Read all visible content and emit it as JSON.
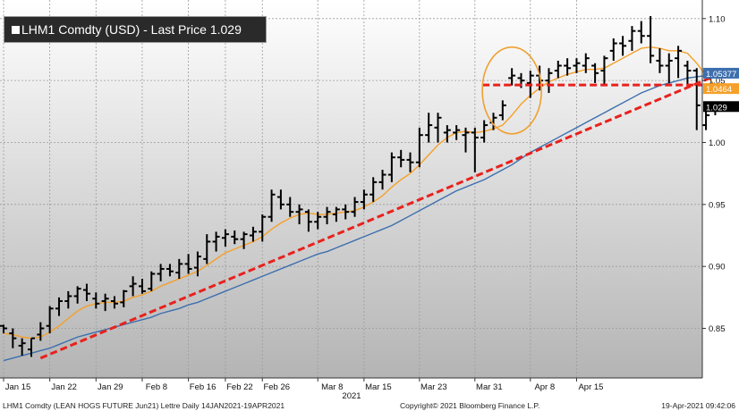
{
  "legend": {
    "title": "LHM1 Comdty (USD) - Last Price 1.029"
  },
  "footer": {
    "description": "LHM1 Comdty (LEAN HOGS FUTURE Jun21) Lettre Daily 14JAN2021-19APR2021",
    "copyright": "Copyright© 2021 Bloomberg Finance L.P.",
    "timestamp": "19-Apr-2021 09:42:06"
  },
  "colors": {
    "price_bars": "#000000",
    "ma_short": "#f5a02a",
    "ma_long": "#3d6fae",
    "trendline": "#e8211d",
    "highlight_circle": "#f0a030",
    "label_blue": "#3d6fae",
    "label_orange": "#f5a02a",
    "label_black": "#000000"
  },
  "chart_data": {
    "type": "line",
    "title": "LHM1 Comdty (USD) - Last Price 1.029",
    "xlabel": "2021",
    "ylabel": "",
    "ylim": [
      0.81,
      1.115
    ],
    "yticks": [
      "0.85",
      "0.90",
      "0.95",
      "1.00",
      "1.05",
      "1.10"
    ],
    "xtick_labels": [
      "Jan 15",
      "Jan 22",
      "Jan 29",
      "Feb 8",
      "Feb 16",
      "Feb 22",
      "Feb 26",
      "Mar 8",
      "Mar 15",
      "Mar 23",
      "Mar 31",
      "Apr 8",
      "Apr 15"
    ],
    "xtick_bar_index": [
      0,
      5,
      10,
      15,
      20,
      24,
      28,
      34,
      39,
      45,
      51,
      57,
      62
    ],
    "axis_year_label": "2021",
    "ohlc_bars": [
      {
        "o": 0.852,
        "h": 0.853,
        "l": 0.846,
        "c": 0.85
      },
      {
        "o": 0.846,
        "h": 0.85,
        "l": 0.834,
        "c": 0.842
      },
      {
        "o": 0.836,
        "h": 0.842,
        "l": 0.828,
        "c": 0.838
      },
      {
        "o": 0.833,
        "h": 0.842,
        "l": 0.827,
        "c": 0.842
      },
      {
        "o": 0.845,
        "h": 0.855,
        "l": 0.84,
        "c": 0.85
      },
      {
        "o": 0.852,
        "h": 0.868,
        "l": 0.846,
        "c": 0.866
      },
      {
        "o": 0.866,
        "h": 0.875,
        "l": 0.86,
        "c": 0.872
      },
      {
        "o": 0.872,
        "h": 0.88,
        "l": 0.866,
        "c": 0.876
      },
      {
        "o": 0.876,
        "h": 0.884,
        "l": 0.87,
        "c": 0.882
      },
      {
        "o": 0.881,
        "h": 0.886,
        "l": 0.872,
        "c": 0.878
      },
      {
        "o": 0.874,
        "h": 0.879,
        "l": 0.866,
        "c": 0.87
      },
      {
        "o": 0.872,
        "h": 0.878,
        "l": 0.864,
        "c": 0.874
      },
      {
        "o": 0.872,
        "h": 0.876,
        "l": 0.866,
        "c": 0.87
      },
      {
        "o": 0.871,
        "h": 0.881,
        "l": 0.867,
        "c": 0.88
      },
      {
        "o": 0.884,
        "h": 0.892,
        "l": 0.876,
        "c": 0.886
      },
      {
        "o": 0.884,
        "h": 0.89,
        "l": 0.878,
        "c": 0.88
      },
      {
        "o": 0.882,
        "h": 0.896,
        "l": 0.88,
        "c": 0.894
      },
      {
        "o": 0.894,
        "h": 0.902,
        "l": 0.888,
        "c": 0.898
      },
      {
        "o": 0.898,
        "h": 0.902,
        "l": 0.892,
        "c": 0.896
      },
      {
        "o": 0.895,
        "h": 0.906,
        "l": 0.89,
        "c": 0.902
      },
      {
        "o": 0.902,
        "h": 0.91,
        "l": 0.894,
        "c": 0.898
      },
      {
        "o": 0.899,
        "h": 0.912,
        "l": 0.892,
        "c": 0.908
      },
      {
        "o": 0.906,
        "h": 0.926,
        "l": 0.902,
        "c": 0.92
      },
      {
        "o": 0.92,
        "h": 0.928,
        "l": 0.912,
        "c": 0.924
      },
      {
        "o": 0.923,
        "h": 0.93,
        "l": 0.916,
        "c": 0.926
      },
      {
        "o": 0.924,
        "h": 0.929,
        "l": 0.918,
        "c": 0.922
      },
      {
        "o": 0.922,
        "h": 0.928,
        "l": 0.914,
        "c": 0.926
      },
      {
        "o": 0.925,
        "h": 0.932,
        "l": 0.92,
        "c": 0.928
      },
      {
        "o": 0.928,
        "h": 0.942,
        "l": 0.92,
        "c": 0.94
      },
      {
        "o": 0.94,
        "h": 0.962,
        "l": 0.936,
        "c": 0.958
      },
      {
        "o": 0.956,
        "h": 0.962,
        "l": 0.946,
        "c": 0.95
      },
      {
        "o": 0.95,
        "h": 0.956,
        "l": 0.94,
        "c": 0.944
      },
      {
        "o": 0.944,
        "h": 0.95,
        "l": 0.934,
        "c": 0.946
      },
      {
        "o": 0.944,
        "h": 0.946,
        "l": 0.928,
        "c": 0.936
      },
      {
        "o": 0.936,
        "h": 0.944,
        "l": 0.93,
        "c": 0.94
      },
      {
        "o": 0.94,
        "h": 0.948,
        "l": 0.934,
        "c": 0.944
      },
      {
        "o": 0.942,
        "h": 0.948,
        "l": 0.936,
        "c": 0.946
      },
      {
        "o": 0.946,
        "h": 0.95,
        "l": 0.938,
        "c": 0.944
      },
      {
        "o": 0.944,
        "h": 0.956,
        "l": 0.94,
        "c": 0.952
      },
      {
        "o": 0.952,
        "h": 0.962,
        "l": 0.946,
        "c": 0.958
      },
      {
        "o": 0.958,
        "h": 0.972,
        "l": 0.952,
        "c": 0.968
      },
      {
        "o": 0.968,
        "h": 0.978,
        "l": 0.962,
        "c": 0.974
      },
      {
        "o": 0.974,
        "h": 0.992,
        "l": 0.968,
        "c": 0.988
      },
      {
        "o": 0.988,
        "h": 0.994,
        "l": 0.98,
        "c": 0.986
      },
      {
        "o": 0.986,
        "h": 0.992,
        "l": 0.976,
        "c": 0.984
      },
      {
        "o": 0.984,
        "h": 1.012,
        "l": 0.98,
        "c": 1.006
      },
      {
        "o": 1.006,
        "h": 1.024,
        "l": 1.0,
        "c": 1.014
      },
      {
        "o": 1.012,
        "h": 1.024,
        "l": 1.0,
        "c": 1.02
      },
      {
        "o": 1.008,
        "h": 1.014,
        "l": 1.0,
        "c": 1.01
      },
      {
        "o": 1.008,
        "h": 1.014,
        "l": 1.002,
        "c": 1.01
      },
      {
        "o": 1.006,
        "h": 1.012,
        "l": 0.992,
        "c": 1.008
      },
      {
        "o": 1.008,
        "h": 1.012,
        "l": 0.976,
        "c": 1.004
      },
      {
        "o": 1.004,
        "h": 1.018,
        "l": 1.0,
        "c": 1.014
      },
      {
        "o": 1.016,
        "h": 1.024,
        "l": 1.01,
        "c": 1.02
      },
      {
        "o": 1.022,
        "h": 1.034,
        "l": 1.018,
        "c": 1.03
      },
      {
        "o": 1.052,
        "h": 1.06,
        "l": 1.046,
        "c": 1.054
      },
      {
        "o": 1.052,
        "h": 1.056,
        "l": 1.044,
        "c": 1.05
      },
      {
        "o": 1.048,
        "h": 1.058,
        "l": 1.036,
        "c": 1.054
      },
      {
        "o": 1.054,
        "h": 1.062,
        "l": 1.042,
        "c": 1.05
      },
      {
        "o": 1.05,
        "h": 1.06,
        "l": 1.04,
        "c": 1.056
      },
      {
        "o": 1.058,
        "h": 1.066,
        "l": 1.052,
        "c": 1.062
      },
      {
        "o": 1.062,
        "h": 1.068,
        "l": 1.054,
        "c": 1.06
      },
      {
        "o": 1.062,
        "h": 1.068,
        "l": 1.056,
        "c": 1.064
      },
      {
        "o": 1.062,
        "h": 1.072,
        "l": 1.056,
        "c": 1.068
      },
      {
        "o": 1.062,
        "h": 1.064,
        "l": 1.048,
        "c": 1.056
      },
      {
        "o": 1.058,
        "h": 1.07,
        "l": 1.046,
        "c": 1.068
      },
      {
        "o": 1.074,
        "h": 1.084,
        "l": 1.066,
        "c": 1.08
      },
      {
        "o": 1.08,
        "h": 1.086,
        "l": 1.07,
        "c": 1.078
      },
      {
        "o": 1.082,
        "h": 1.094,
        "l": 1.074,
        "c": 1.09
      },
      {
        "o": 1.09,
        "h": 1.098,
        "l": 1.08,
        "c": 1.086
      },
      {
        "o": 1.086,
        "h": 1.102,
        "l": 1.064,
        "c": 1.07
      },
      {
        "o": 1.066,
        "h": 1.076,
        "l": 1.056,
        "c": 1.062
      },
      {
        "o": 1.062,
        "h": 1.072,
        "l": 1.048,
        "c": 1.066
      },
      {
        "o": 1.068,
        "h": 1.078,
        "l": 1.052,
        "c": 1.074
      },
      {
        "o": 1.062,
        "h": 1.066,
        "l": 1.046,
        "c": 1.058
      },
      {
        "o": 1.058,
        "h": 1.06,
        "l": 1.01,
        "c": 1.03
      },
      {
        "o": 1.014,
        "h": 1.026,
        "l": 1.01,
        "c": 1.022
      },
      {
        "o": 1.026,
        "h": 1.03,
        "l": 1.022,
        "c": 1.029
      }
    ],
    "series": [
      {
        "name": "",
        "color": "#f5a02a",
        "values": [
          0.846,
          0.845,
          0.843,
          0.842,
          0.843,
          0.847,
          0.852,
          0.858,
          0.864,
          0.868,
          0.87,
          0.871,
          0.871,
          0.872,
          0.875,
          0.877,
          0.88,
          0.884,
          0.887,
          0.89,
          0.893,
          0.896,
          0.901,
          0.906,
          0.911,
          0.914,
          0.917,
          0.92,
          0.924,
          0.93,
          0.935,
          0.939,
          0.942,
          0.943,
          0.942,
          0.942,
          0.943,
          0.944,
          0.945,
          0.948,
          0.952,
          0.957,
          0.964,
          0.97,
          0.975,
          0.982,
          0.99,
          0.998,
          1.004,
          1.008,
          1.009,
          1.008,
          1.009,
          1.011,
          1.014,
          1.022,
          1.031,
          1.038,
          1.044,
          1.049,
          1.052,
          1.055,
          1.057,
          1.059,
          1.059,
          1.06,
          1.064,
          1.068,
          1.072,
          1.076,
          1.077,
          1.076,
          1.074,
          1.074,
          1.072,
          1.064,
          1.054,
          1.046
        ]
      },
      {
        "name": "",
        "color": "#3d6fae",
        "values": [
          0.824,
          0.826,
          0.828,
          0.83,
          0.832,
          0.834,
          0.837,
          0.84,
          0.843,
          0.845,
          0.847,
          0.849,
          0.851,
          0.853,
          0.855,
          0.857,
          0.859,
          0.862,
          0.864,
          0.866,
          0.869,
          0.871,
          0.874,
          0.877,
          0.88,
          0.883,
          0.886,
          0.889,
          0.892,
          0.895,
          0.898,
          0.901,
          0.904,
          0.907,
          0.91,
          0.912,
          0.915,
          0.918,
          0.921,
          0.924,
          0.927,
          0.93,
          0.933,
          0.937,
          0.941,
          0.945,
          0.949,
          0.953,
          0.957,
          0.961,
          0.964,
          0.967,
          0.97,
          0.974,
          0.978,
          0.982,
          0.987,
          0.992,
          0.996,
          1.0,
          1.004,
          1.008,
          1.012,
          1.016,
          1.02,
          1.024,
          1.028,
          1.032,
          1.036,
          1.04,
          1.043,
          1.046,
          1.048,
          1.05,
          1.052,
          1.053,
          1.054,
          1.054
        ]
      }
    ],
    "trendline": {
      "x": [
        4,
        79
      ],
      "y": [
        0.826,
        1.06
      ]
    },
    "support_line": {
      "y": 1.0464,
      "x_from_bar": 52
    },
    "highlight_circle": {
      "x_center": 55,
      "y_center": 1.042,
      "x_radius": 3.2,
      "y_radius": 0.035
    },
    "price_labels": [
      {
        "text": "1.05377",
        "value": 1.05377,
        "color_key": "label_blue"
      },
      {
        "text": "1.0464",
        "value": 1.0464,
        "color_key": "label_orange"
      },
      {
        "text": "1.029",
        "value": 1.029,
        "color_key": "label_black"
      }
    ],
    "grid": true,
    "legend_position": "top-left"
  }
}
